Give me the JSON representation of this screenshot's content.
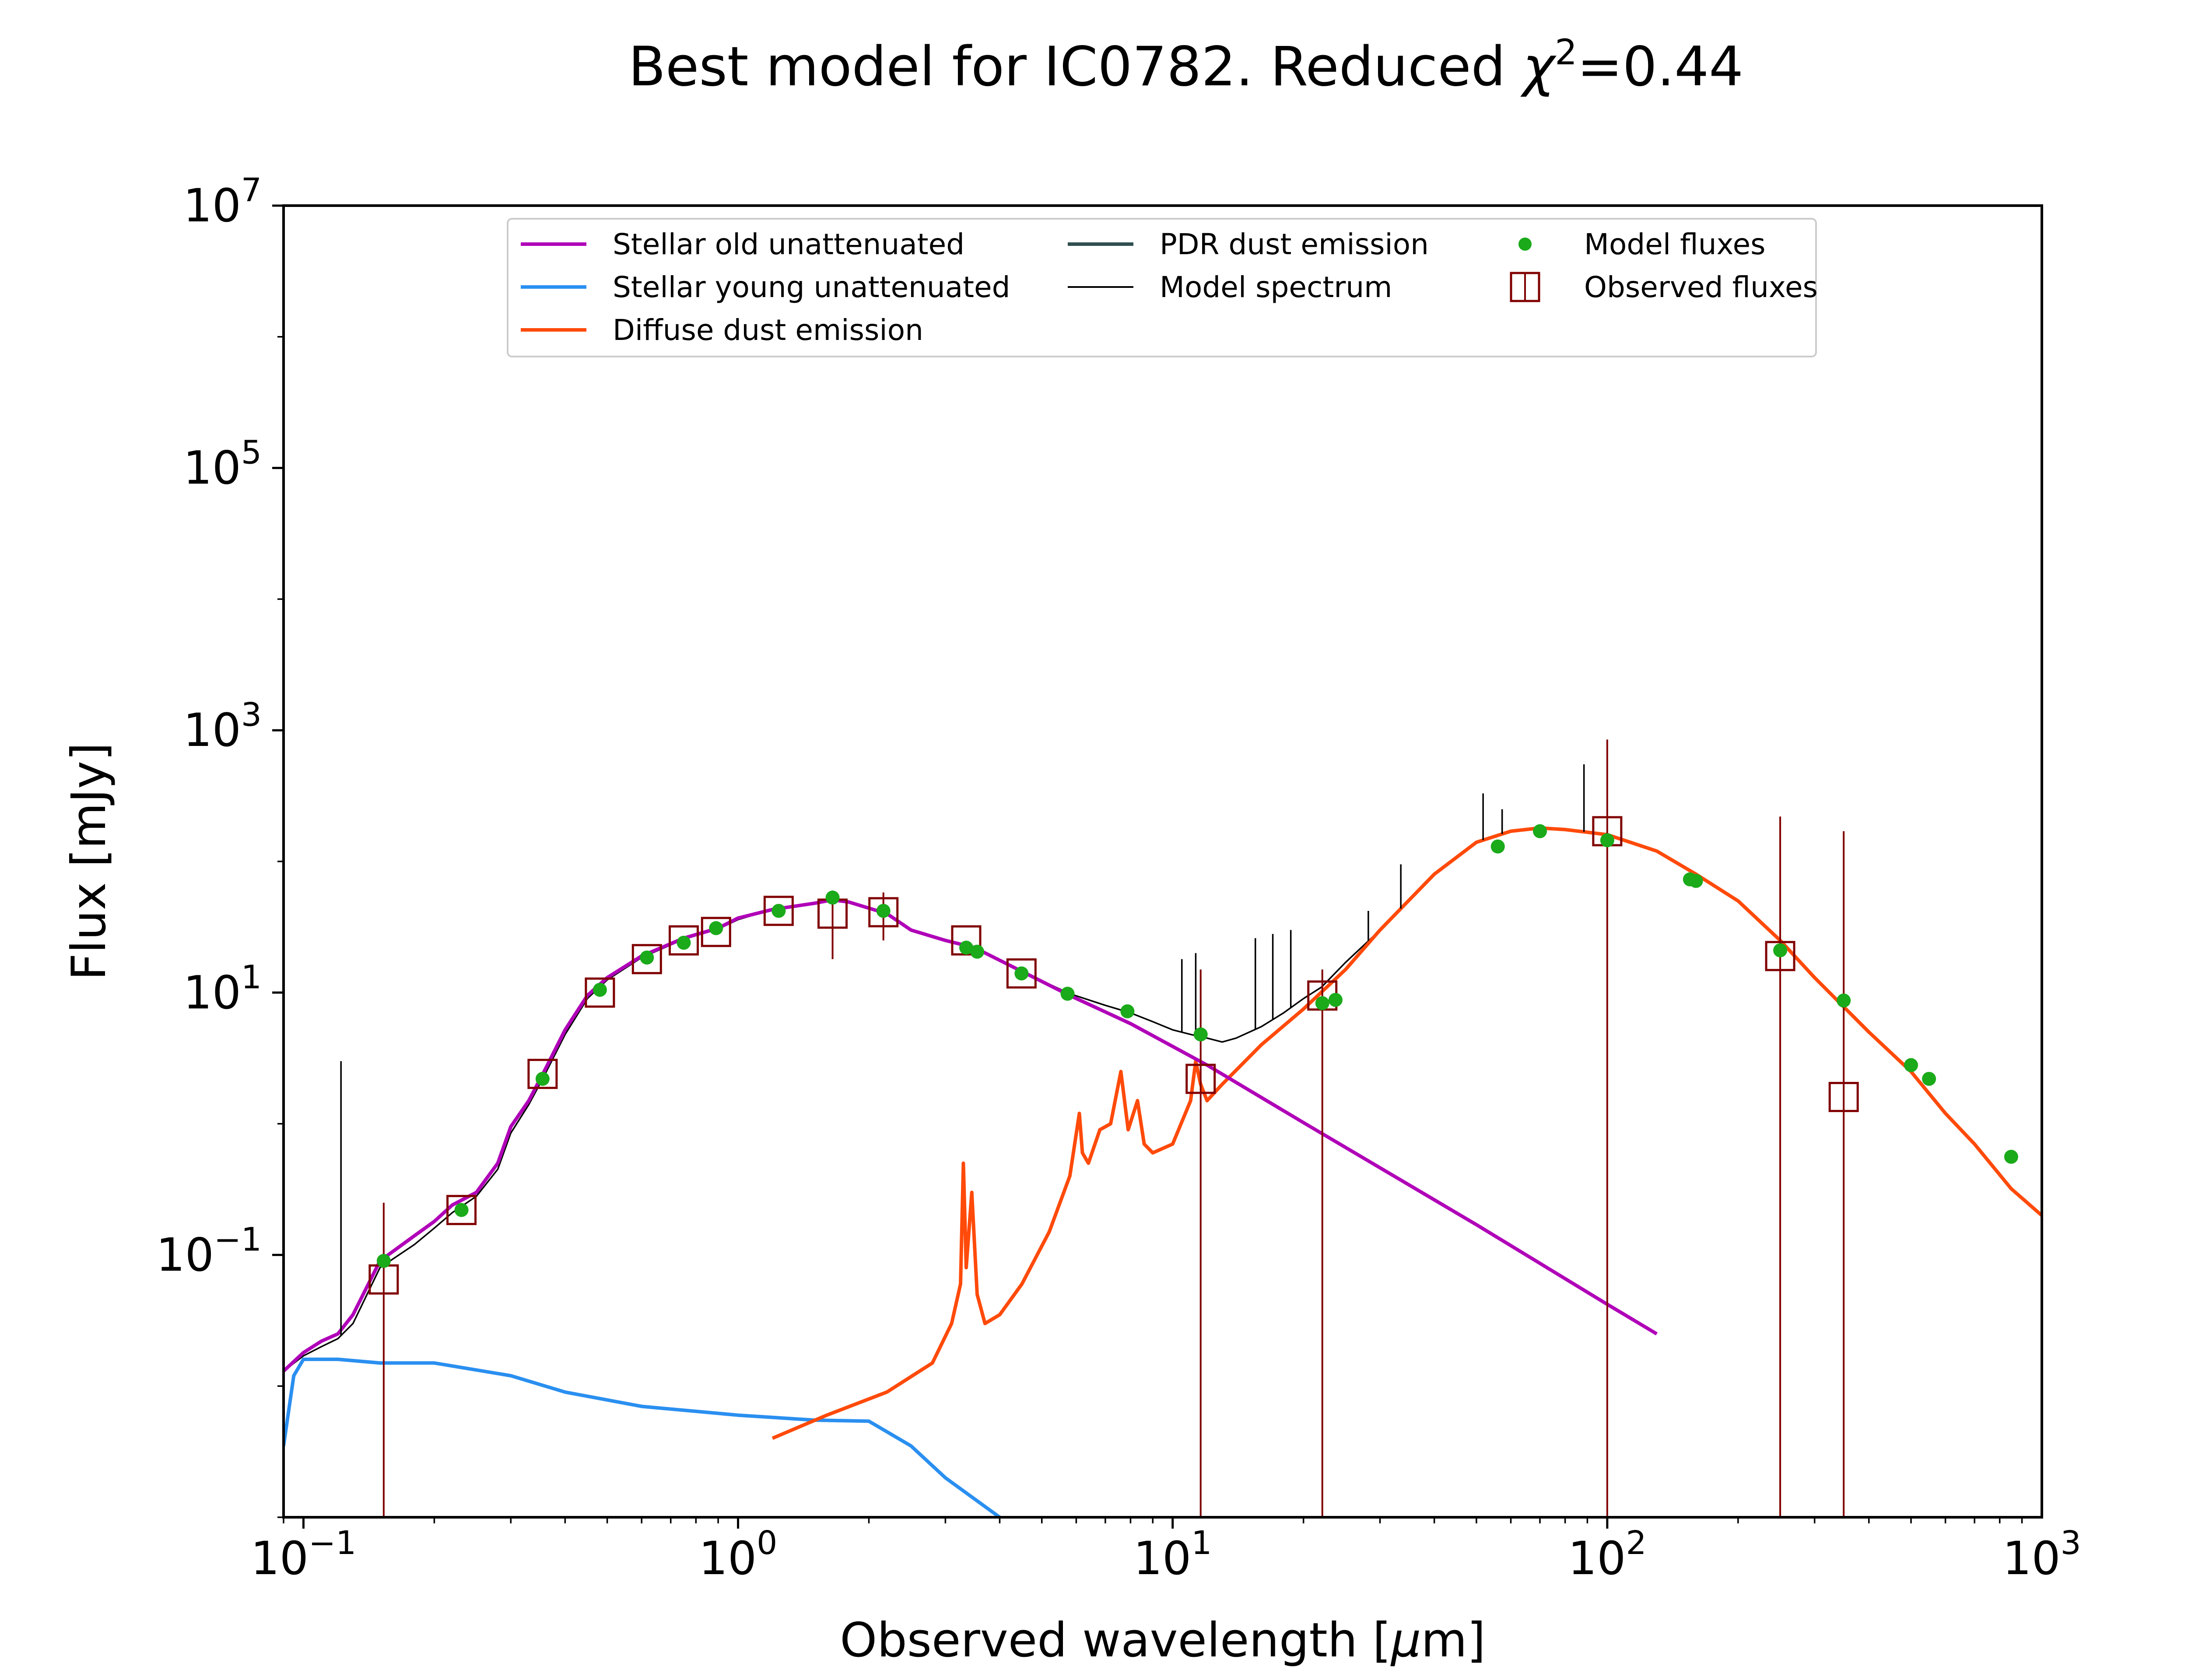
{
  "chart_data": {
    "type": "line",
    "title": "Best model for IC0782. Reduced χ²=0.44",
    "title_parts": {
      "prefix": "Best model for IC0782. Reduced ",
      "chi": "χ",
      "sup": "2",
      "suffix": "=0.44"
    },
    "xlabel": "Observed wavelength [μm]",
    "xlabel_parts": {
      "prefix": "Observed wavelength [",
      "mu": "μ",
      "suffix": "m]"
    },
    "ylabel": "Flux [mJy]",
    "xscale": "log",
    "yscale": "log",
    "xlim": [
      0.09,
      1000
    ],
    "ylim": [
      0.001,
      10000000
    ],
    "x_ticks": [
      {
        "value": 0.1,
        "base": "10",
        "exp": "−1"
      },
      {
        "value": 1,
        "base": "10",
        "exp": "0"
      },
      {
        "value": 10,
        "base": "10",
        "exp": "1"
      },
      {
        "value": 100,
        "base": "10",
        "exp": "2"
      },
      {
        "value": 1000,
        "base": "10",
        "exp": "3"
      }
    ],
    "y_ticks": [
      {
        "value": 0.1,
        "base": "10",
        "exp": "−1"
      },
      {
        "value": 10,
        "base": "10",
        "exp": "1"
      },
      {
        "value": 1000,
        "base": "10",
        "exp": "3"
      },
      {
        "value": 100000,
        "base": "10",
        "exp": "5"
      },
      {
        "value": 10000000,
        "base": "10",
        "exp": "7"
      }
    ],
    "grid": false,
    "legend_position": "top-center",
    "colors": {
      "stellar_old": "#b000b8",
      "stellar_young": "#2a8ff0",
      "diffuse_dust": "#ff4a0a",
      "pdr_dust": "#2f4f4f",
      "model_spectrum": "#000000",
      "model_fluxes": "#1aaa1a",
      "observed_fluxes": "#800000"
    },
    "legend": [
      {
        "key": "stellar_old",
        "label": "Stellar old unattenuated",
        "marker": "line"
      },
      {
        "key": "stellar_young",
        "label": "Stellar young unattenuated",
        "marker": "line"
      },
      {
        "key": "diffuse_dust",
        "label": "Diffuse dust emission",
        "marker": "line"
      },
      {
        "key": "pdr_dust",
        "label": "PDR dust emission",
        "marker": "line"
      },
      {
        "key": "model_spectrum",
        "label": "Model spectrum",
        "marker": "thin-line"
      },
      {
        "key": "model_fluxes",
        "label": "Model fluxes",
        "marker": "dot"
      },
      {
        "key": "observed_fluxes",
        "label": "Observed fluxes",
        "marker": "square"
      }
    ],
    "series": [
      {
        "key": "stellar_old",
        "x": [
          0.09,
          0.1,
          0.11,
          0.12,
          0.13,
          0.15,
          0.18,
          0.2,
          0.22,
          0.25,
          0.28,
          0.3,
          0.33,
          0.36,
          0.4,
          0.45,
          0.5,
          0.6,
          0.75,
          0.9,
          1.0,
          1.2,
          1.5,
          1.65,
          1.8,
          2.2,
          2.5,
          3.0,
          3.5,
          4.5,
          5.8,
          8.0,
          12,
          20,
          50,
          100,
          130
        ],
        "y": [
          0.013,
          0.018,
          0.022,
          0.025,
          0.035,
          0.09,
          0.14,
          0.18,
          0.24,
          0.3,
          0.5,
          0.95,
          1.5,
          2.6,
          5.2,
          9.5,
          13,
          19,
          26,
          31,
          37,
          43,
          48,
          51,
          49,
          40,
          30,
          25,
          22,
          14.5,
          9.5,
          5.8,
          2.8,
          1.02,
          0.17,
          0.042,
          0.025
        ]
      },
      {
        "key": "stellar_young",
        "x": [
          0.09,
          0.095,
          0.1,
          0.12,
          0.15,
          0.2,
          0.3,
          0.4,
          0.6,
          1.0,
          1.5,
          2.0,
          2.5,
          3.0,
          4.0
        ],
        "y": [
          0.0035,
          0.012,
          0.016,
          0.016,
          0.015,
          0.015,
          0.012,
          0.009,
          0.007,
          0.006,
          0.0055,
          0.0054,
          0.0035,
          0.002,
          0.001
        ]
      },
      {
        "key": "diffuse_dust",
        "x": [
          1.2,
          1.6,
          2.2,
          2.8,
          3.1,
          3.25,
          3.3,
          3.35,
          3.45,
          3.55,
          3.7,
          4.0,
          4.5,
          5.2,
          5.8,
          6.1,
          6.2,
          6.4,
          6.8,
          7.2,
          7.6,
          7.9,
          8.3,
          8.6,
          9.0,
          10.0,
          11.0,
          11.3,
          11.6,
          12.0,
          13.0,
          16,
          20,
          25,
          30,
          40,
          50,
          60,
          70,
          80,
          100,
          130,
          160,
          200,
          250,
          300,
          400,
          500,
          600,
          700,
          850,
          1000
        ],
        "y": [
          0.004,
          0.006,
          0.009,
          0.015,
          0.03,
          0.06,
          0.5,
          0.08,
          0.3,
          0.05,
          0.03,
          0.035,
          0.06,
          0.15,
          0.4,
          1.2,
          0.6,
          0.5,
          0.9,
          1.0,
          2.5,
          0.9,
          1.5,
          0.7,
          0.6,
          0.7,
          1.5,
          3.0,
          2.0,
          1.5,
          2.0,
          4.0,
          7.5,
          15,
          30,
          80,
          140,
          170,
          180,
          175,
          160,
          120,
          80,
          50,
          25,
          13,
          5,
          2.5,
          1.2,
          0.7,
          0.32,
          0.2
        ]
      },
      {
        "key": "model_spectrum",
        "x": [
          0.09,
          0.1,
          0.11,
          0.12,
          0.13,
          0.15,
          0.18,
          0.2,
          0.22,
          0.25,
          0.28,
          0.3,
          0.33,
          0.36,
          0.4,
          0.45,
          0.5,
          0.6,
          0.75,
          0.9,
          1.0,
          1.2,
          1.5,
          1.65,
          1.8,
          2.2,
          2.5,
          3.0,
          3.5,
          4.5,
          5.8,
          7.0,
          8.0,
          9.0,
          10.0,
          11.0,
          12.0,
          13.0,
          14.0,
          16.0,
          18.0,
          20.0,
          22.0,
          25.0,
          30.0,
          40.0,
          50.0,
          60.0,
          70.0,
          80.0,
          100.0,
          130.0,
          160.0,
          200.0,
          250.0,
          300.0,
          400.0,
          500.0,
          600.0,
          700.0,
          850.0,
          1000.0
        ],
        "y": [
          0.013,
          0.017,
          0.02,
          0.023,
          0.03,
          0.08,
          0.12,
          0.16,
          0.21,
          0.28,
          0.45,
          0.85,
          1.4,
          2.4,
          4.8,
          9.0,
          12.5,
          18.5,
          25.5,
          30.5,
          36,
          43,
          48,
          51,
          49,
          40,
          30,
          25,
          22,
          14.5,
          9.8,
          8.0,
          7.0,
          6.0,
          5.2,
          4.8,
          4.5,
          4.2,
          4.5,
          5.5,
          7.0,
          9.0,
          11.0,
          17,
          30,
          80,
          140,
          170,
          180,
          175,
          160,
          120,
          80,
          50,
          25,
          13,
          5,
          2.5,
          1.2,
          0.7,
          0.32,
          0.2
        ]
      }
    ],
    "spectrum_lines": [
      {
        "x": 0.122,
        "y_top": 3.0
      },
      {
        "x": 10.5,
        "y_top": 18
      },
      {
        "x": 11.3,
        "y_top": 20
      },
      {
        "x": 15.5,
        "y_top": 26
      },
      {
        "x": 17.0,
        "y_top": 28
      },
      {
        "x": 18.7,
        "y_top": 30
      },
      {
        "x": 28.2,
        "y_top": 42
      },
      {
        "x": 33.5,
        "y_top": 95
      },
      {
        "x": 51.8,
        "y_top": 330
      },
      {
        "x": 57.3,
        "y_top": 250
      },
      {
        "x": 88.4,
        "y_top": 550
      }
    ],
    "model_fluxes": {
      "x": [
        0.153,
        0.231,
        0.355,
        0.481,
        0.617,
        0.75,
        0.89,
        1.24,
        1.65,
        2.16,
        3.35,
        3.55,
        4.49,
        5.73,
        7.87,
        11.6,
        22.1,
        23.7,
        56,
        70,
        100,
        155,
        160,
        250,
        350,
        500,
        550,
        850
      ],
      "y": [
        0.09,
        0.22,
        2.2,
        10.5,
        18.5,
        24,
        31,
        42,
        53,
        42,
        22,
        20.5,
        14,
        9.8,
        7.2,
        4.8,
        8.3,
        8.8,
        130,
        170,
        145,
        73,
        71,
        21,
        8.7,
        2.8,
        2.2,
        0.56
      ]
    },
    "observed_fluxes": [
      {
        "x": 0.153,
        "y": 0.065,
        "err_lo": 0.001,
        "err_hi": 0.25
      },
      {
        "x": 0.231,
        "y": 0.22,
        "err_lo": null,
        "err_hi": null
      },
      {
        "x": 0.355,
        "y": 2.4,
        "err_lo": null,
        "err_hi": null
      },
      {
        "x": 0.481,
        "y": 10.0,
        "err_lo": null,
        "err_hi": null
      },
      {
        "x": 0.617,
        "y": 18.0,
        "err_lo": null,
        "err_hi": null
      },
      {
        "x": 0.75,
        "y": 25.0,
        "err_lo": null,
        "err_hi": null
      },
      {
        "x": 0.89,
        "y": 29.0,
        "err_lo": null,
        "err_hi": null
      },
      {
        "x": 1.24,
        "y": 42.0,
        "err_lo": null,
        "err_hi": null
      },
      {
        "x": 1.65,
        "y": 40.0,
        "err_lo": 18,
        "err_hi": 60
      },
      {
        "x": 2.16,
        "y": 41.0,
        "err_lo": 25,
        "err_hi": 58
      },
      {
        "x": 3.35,
        "y": 25.0,
        "err_lo": null,
        "err_hi": null
      },
      {
        "x": 4.49,
        "y": 14.0,
        "err_lo": null,
        "err_hi": null
      },
      {
        "x": 11.6,
        "y": 2.2,
        "err_lo": 0.001,
        "err_hi": 15
      },
      {
        "x": 22.1,
        "y": 9.5,
        "err_lo": 0.001,
        "err_hi": 15
      },
      {
        "x": 100,
        "y": 170,
        "err_lo": 0.001,
        "err_hi": 850
      },
      {
        "x": 250,
        "y": 19,
        "err_lo": 0.001,
        "err_hi": 220
      },
      {
        "x": 350,
        "y": 1.6,
        "err_lo": 0.001,
        "err_hi": 170
      }
    ]
  }
}
